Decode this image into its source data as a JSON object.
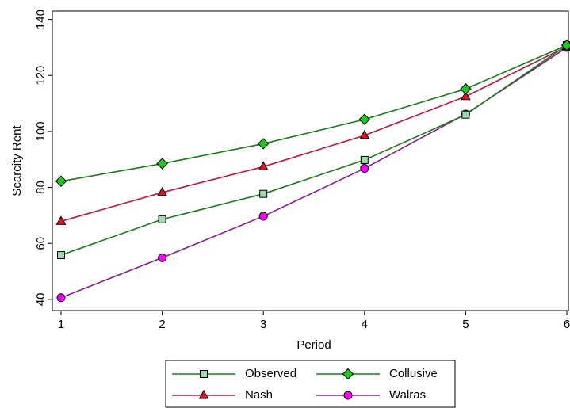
{
  "chart_data": {
    "type": "line",
    "xlabel": "Period",
    "ylabel": "Scarcity Rent",
    "x": [
      1,
      2,
      3,
      4,
      5,
      6
    ],
    "xlim": [
      1,
      6
    ],
    "ylim": [
      36,
      143
    ],
    "xticks": [
      "1",
      "2",
      "3",
      "4",
      "5",
      "6"
    ],
    "yticks": [
      40,
      60,
      80,
      100,
      120,
      140
    ],
    "grid": false,
    "legend_position": "bottom",
    "series": [
      {
        "name": "Observed",
        "values": [
          55.8,
          68.6,
          77.7,
          89.8,
          106.0,
          130.8
        ],
        "color": "#1a7a1a",
        "marker": "square",
        "marker_fill": "#a0d8b0"
      },
      {
        "name": "Collusive",
        "values": [
          82.2,
          88.5,
          95.6,
          104.3,
          115.2,
          130.8
        ],
        "color": "#1a7a1a",
        "marker": "diamond",
        "marker_fill": "#1ec81e"
      },
      {
        "name": "Nash",
        "values": [
          67.9,
          78.2,
          87.4,
          98.6,
          112.5,
          130.3
        ],
        "color": "#c0143c",
        "marker": "triangle",
        "marker_fill": "#e8101e"
      },
      {
        "name": "Walras",
        "values": [
          40.6,
          54.9,
          69.7,
          86.8,
          106.2,
          130.0
        ],
        "color": "#8b1a8b",
        "marker": "circle",
        "marker_fill": "#ff00ff"
      }
    ],
    "legend_order": [
      "Observed",
      "Collusive",
      "Nash",
      "Walras"
    ]
  }
}
